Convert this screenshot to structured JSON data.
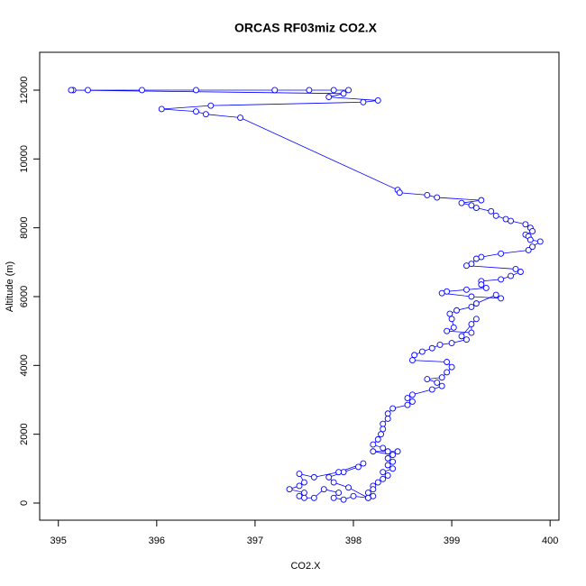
{
  "chart_data": {
    "type": "line",
    "title": "ORCAS RF03miz CO2.X",
    "x_label": "CO2.X",
    "y_label": "Altitude (m)",
    "x": [
      397.95,
      397.8,
      397.55,
      397.2,
      396.4,
      395.85,
      395.3,
      395.15,
      395.13,
      397.9,
      397.75,
      398.25,
      398.1,
      396.55,
      396.05,
      396.4,
      396.5,
      396.85,
      398.45,
      398.47,
      398.75,
      398.85,
      399.3,
      399.1,
      399.2,
      399.25,
      399.4,
      399.45,
      399.55,
      399.6,
      399.75,
      399.8,
      399.82,
      399.75,
      399.78,
      399.8,
      399.9,
      399.82,
      399.78,
      399.5,
      399.3,
      399.25,
      399.2,
      399.15,
      399.65,
      399.7,
      399.6,
      399.5,
      399.3,
      399.3,
      399.35,
      399.15,
      398.95,
      398.9,
      399.2,
      399.5,
      399.45,
      399.25,
      399.2,
      399.05,
      398.98,
      399.0,
      399.02,
      398.95,
      399.2,
      399.2,
      399.25,
      399.1,
      399.15,
      399.0,
      398.88,
      398.8,
      398.7,
      398.62,
      398.6,
      398.95,
      399.0,
      398.95,
      398.9,
      398.75,
      398.85,
      398.9,
      398.8,
      398.6,
      398.55,
      398.6,
      398.55,
      398.4,
      398.35,
      398.35,
      398.3,
      398.3,
      398.28,
      398.25,
      398.2,
      398.3,
      398.35,
      398.45,
      398.2,
      398.4,
      398.35,
      398.4,
      398.35,
      398.4,
      398.3,
      398.35,
      398.3,
      398.25,
      398.2,
      398.2,
      398.15,
      398.2,
      398.15,
      397.95,
      397.8,
      397.75,
      397.9,
      398.05,
      398.1,
      397.85,
      397.6,
      397.45,
      397.5,
      397.45,
      397.35,
      397.5,
      397.45,
      397.5,
      397.6,
      397.7,
      397.85,
      397.8,
      397.9,
      398.0,
      398.15
    ],
    "values": [
      12000,
      12000,
      12000,
      12000,
      12000,
      12000,
      12000,
      12000,
      12000,
      11900,
      11800,
      11700,
      11650,
      11550,
      11450,
      11380,
      11300,
      11200,
      9100,
      9020,
      8950,
      8880,
      8800,
      8720,
      8650,
      8580,
      8480,
      8350,
      8250,
      8200,
      8100,
      8000,
      7900,
      7800,
      7750,
      7650,
      7600,
      7450,
      7350,
      7250,
      7150,
      7100,
      6950,
      6900,
      6800,
      6720,
      6600,
      6500,
      6450,
      6350,
      6250,
      6200,
      6150,
      6100,
      6000,
      5950,
      6050,
      5800,
      5700,
      5600,
      5500,
      5350,
      5100,
      5000,
      4950,
      5200,
      5350,
      4850,
      4750,
      4650,
      4600,
      4500,
      4400,
      4300,
      4150,
      4100,
      3950,
      3800,
      3650,
      3600,
      3500,
      3400,
      3300,
      3150,
      3050,
      2950,
      2850,
      2750,
      2600,
      2450,
      2300,
      2150,
      2000,
      1850,
      1700,
      1600,
      1500,
      1500,
      1500,
      1400,
      1300,
      1200,
      1100,
      1000,
      900,
      800,
      700,
      600,
      500,
      400,
      300,
      200,
      150,
      450,
      600,
      750,
      900,
      1050,
      1150,
      900,
      750,
      850,
      600,
      500,
      400,
      300,
      200,
      150,
      150,
      400,
      300,
      150,
      100,
      200,
      150
    ],
    "color": "#0000ff",
    "marker": "circle",
    "xlim": [
      394.81,
      400.09
    ],
    "ylim": [
      -498,
      13100
    ],
    "xticks": [
      395,
      396,
      397,
      398,
      399,
      400
    ],
    "yticks": [
      0,
      2000,
      4000,
      6000,
      8000,
      10000,
      12000
    ]
  }
}
